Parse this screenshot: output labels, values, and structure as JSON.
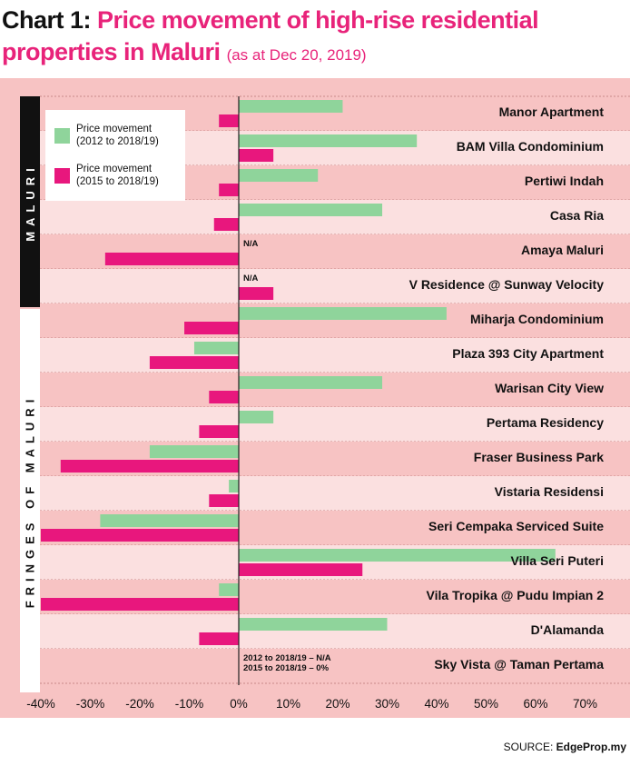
{
  "title": {
    "lead": "Chart 1:",
    "main": "Price movement of high-rise residential properties in Maluri",
    "as_at": "(as at Dec 20, 2019)"
  },
  "sidebar": {
    "maluri": "MALURI",
    "fringes": "FRINGES OF MALURI"
  },
  "legend": {
    "green_line1": "Price movement",
    "green_line2": "(2012 to 2018/19)",
    "pink_line1": "Price movement",
    "pink_line2": "(2015 to 2018/19)"
  },
  "source": {
    "prefix": "SOURCE:",
    "name": "EdgeProp.my"
  },
  "colors": {
    "green": "#8fd49b",
    "pink": "#e8177d",
    "panel": "#f7c3c3",
    "row_light": "#fbe0e0",
    "title_pink": "#e8237a"
  },
  "chart_data": {
    "type": "bar",
    "orientation": "horizontal",
    "xlim": [
      -40,
      70
    ],
    "ticks": [
      "-40%",
      "-30%",
      "-20%",
      "-10%",
      "0%",
      "10%",
      "20%",
      "30%",
      "40%",
      "50%",
      "60%",
      "70%"
    ],
    "tick_values": [
      -40,
      -30,
      -20,
      -10,
      0,
      10,
      20,
      30,
      40,
      50,
      60,
      70
    ],
    "series": [
      {
        "name": "Price movement (2012 to 2018/19)",
        "color": "#8fd49b"
      },
      {
        "name": "Price movement (2015 to 2018/19)",
        "color": "#e8177d"
      }
    ],
    "categories": [
      "Manor Apartment",
      "BAM Villa Condominium",
      "Pertiwi Indah",
      "Casa Ria",
      "Amaya Maluri",
      "V Residence @ Sunway Velocity",
      "Miharja Condominium",
      "Plaza 393 City Apartment",
      "Warisan City View",
      "Pertama Residency",
      "Fraser Business Park",
      "Vistaria Residensi",
      "Seri Cempaka Serviced Suite",
      "Villa Seri Puteri",
      "Vila Tropika @ Pudu Impian 2",
      "D'Alamanda",
      "Sky Vista @ Taman Pertama"
    ],
    "values_2012": [
      21,
      36,
      16,
      29,
      null,
      null,
      42,
      -9,
      29,
      7,
      -18,
      -2,
      -28,
      64,
      -4,
      30,
      null
    ],
    "values_2015": [
      -4,
      7,
      -4,
      -5,
      -27,
      7,
      -11,
      -18,
      -6,
      -8,
      -36,
      -6,
      -40,
      25,
      -40,
      -8,
      0
    ],
    "annotations": [
      {
        "row": 4,
        "lines": [
          "N/A"
        ]
      },
      {
        "row": 5,
        "lines": [
          "N/A"
        ]
      },
      {
        "row": 16,
        "lines": [
          "2012 to 2018/19 – N/A",
          "2015 to 2018/19 – 0%"
        ]
      }
    ],
    "groups": [
      {
        "label": "MALURI",
        "rows": [
          0,
          5
        ]
      },
      {
        "label": "FRINGES OF MALURI",
        "rows": [
          6,
          16
        ]
      }
    ]
  }
}
